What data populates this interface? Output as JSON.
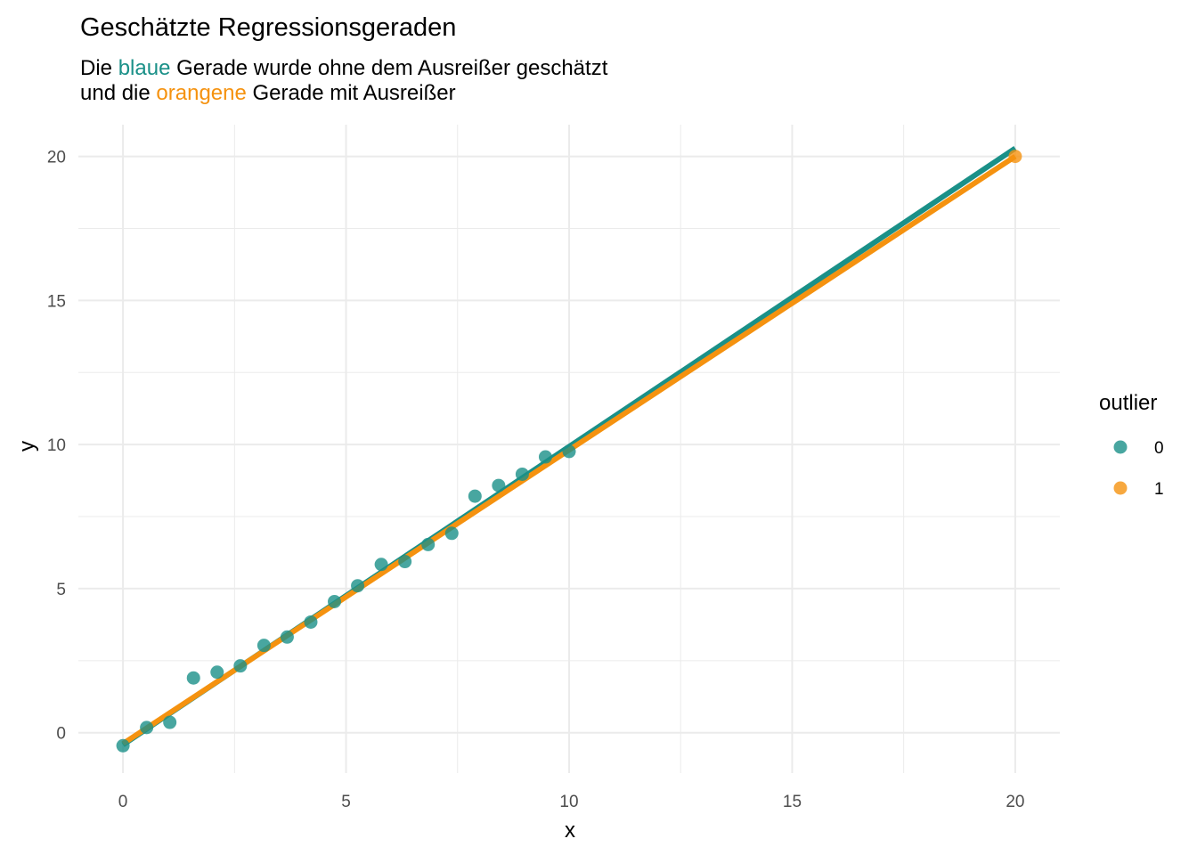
{
  "chart_data": {
    "type": "scatter",
    "title": "Geschätzte Regressionsgeraden",
    "subtitle": {
      "line1": {
        "pre": "Die ",
        "highlight": "blaue",
        "post": " Gerade wurde ohne dem Ausreißer geschätzt"
      },
      "line2": {
        "pre": "und die ",
        "highlight": "orangene",
        "post": " Gerade mit Ausreißer"
      }
    },
    "xlabel": "x",
    "ylabel": "y",
    "xlim": [
      -1,
      21
    ],
    "ylim": [
      -1.4,
      21.1
    ],
    "x_ticks": [
      0,
      5,
      10,
      15,
      20
    ],
    "y_ticks": [
      0,
      5,
      10,
      15,
      20
    ],
    "grid": true,
    "legend": {
      "title": "outlier",
      "position": "right",
      "entries": [
        "0",
        "1"
      ]
    },
    "colors": {
      "blue": "#1a9088",
      "orange": "#f5920f",
      "grid": "#ebebeb",
      "tick": "#4d4d4d"
    },
    "series": [
      {
        "name": "0",
        "color": "#1a9088",
        "points": [
          [
            0.0,
            -0.45
          ],
          [
            0.53,
            0.18
          ],
          [
            1.05,
            0.36
          ],
          [
            1.58,
            1.9
          ],
          [
            2.11,
            2.1
          ],
          [
            2.63,
            2.32
          ],
          [
            3.16,
            3.03
          ],
          [
            3.68,
            3.32
          ],
          [
            4.21,
            3.84
          ],
          [
            4.74,
            4.55
          ],
          [
            5.26,
            5.1
          ],
          [
            5.79,
            5.84
          ],
          [
            6.32,
            5.94
          ],
          [
            6.84,
            6.53
          ],
          [
            7.37,
            6.92
          ],
          [
            7.89,
            8.21
          ],
          [
            8.42,
            8.58
          ],
          [
            8.95,
            8.97
          ],
          [
            9.47,
            9.57
          ],
          [
            10.0,
            9.76
          ]
        ]
      },
      {
        "name": "1",
        "color": "#f5920f",
        "points": [
          [
            20.0,
            20.0
          ]
        ]
      }
    ],
    "lines": [
      {
        "name": "ohne Ausreißer",
        "color": "#1a9088",
        "x": [
          0,
          20
        ],
        "y": [
          -0.42,
          20.28
        ]
      },
      {
        "name": "mit Ausreißer",
        "color": "#f5920f",
        "x": [
          0,
          20
        ],
        "y": [
          -0.38,
          20.0
        ]
      }
    ]
  }
}
